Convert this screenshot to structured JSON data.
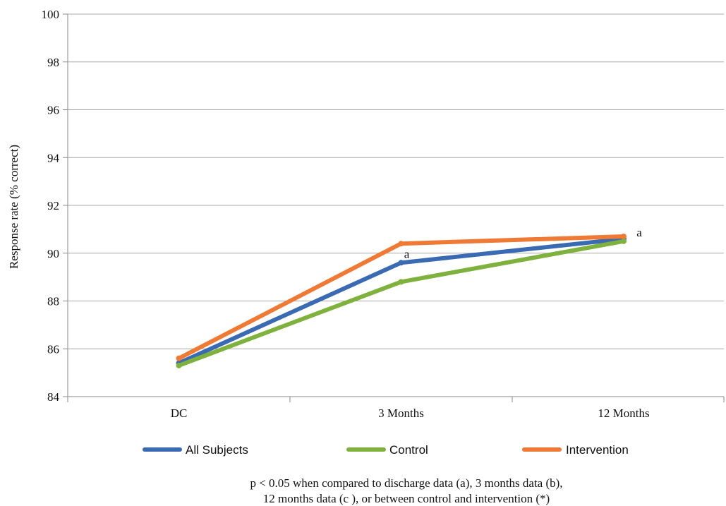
{
  "chart_data": {
    "type": "line",
    "categories": [
      "DC",
      "3 Months",
      "12 Months"
    ],
    "ylabel": "Response rate (% correct)",
    "xlabel": "",
    "ylim": [
      84,
      100
    ],
    "yticks": [
      84,
      86,
      88,
      90,
      92,
      94,
      96,
      98,
      100
    ],
    "grid": "horizontal",
    "legend_position": "bottom",
    "series": [
      {
        "name": "All Subjects",
        "color": "#3a6bb2",
        "values": [
          85.4,
          89.6,
          90.6
        ]
      },
      {
        "name": "Control",
        "color": "#7fb13f",
        "values": [
          85.3,
          88.8,
          90.5
        ]
      },
      {
        "name": "Intervention",
        "color": "#ee7a35",
        "values": [
          85.6,
          90.4,
          90.7
        ]
      }
    ],
    "annotations": [
      {
        "text": "a",
        "category": "3 Months",
        "series": "All Subjects"
      },
      {
        "text": "a",
        "category": "12 Months",
        "series": "Intervention"
      }
    ],
    "footnote": [
      "p < 0.05 when compared to discharge data (a), 3 months data (b),",
      "12 months data (c ), or between control and intervention (*)"
    ]
  }
}
